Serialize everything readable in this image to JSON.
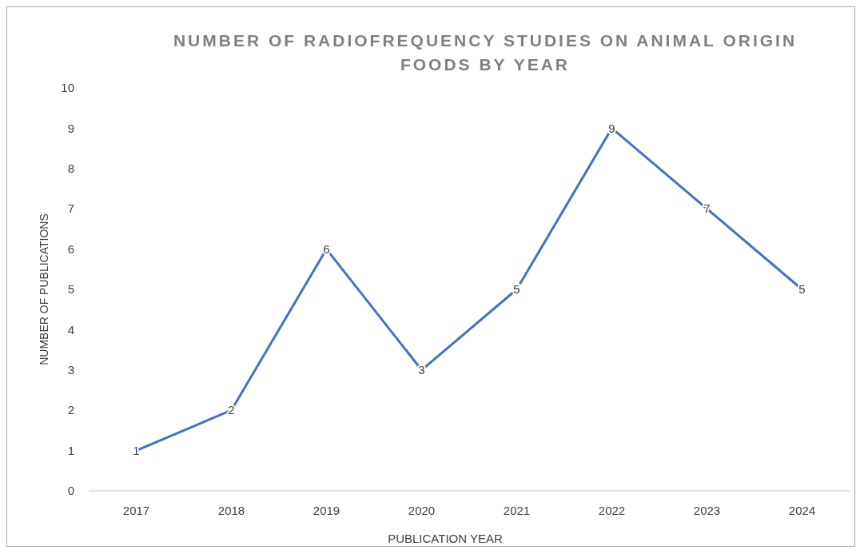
{
  "chart_data": {
    "type": "line",
    "title": "NUMBER OF RADIOFREQUENCY STUDIES ON ANIMAL ORIGIN FOODS BY YEAR",
    "xlabel": "PUBLICATION YEAR",
    "ylabel": "NUMBER OF PUBLICATIONS",
    "categories": [
      "2017",
      "2018",
      "2019",
      "2020",
      "2021",
      "2022",
      "2023",
      "2024"
    ],
    "series": [
      {
        "color": "#4472c4",
        "values": [
          1,
          2,
          6,
          3,
          5,
          9,
          7,
          5
        ]
      }
    ],
    "ylim": [
      0,
      10
    ],
    "yticks": [
      0,
      1,
      2,
      3,
      4,
      5,
      6,
      7,
      8,
      9,
      10
    ],
    "grid": false,
    "marker": "none",
    "data_labels": true
  }
}
